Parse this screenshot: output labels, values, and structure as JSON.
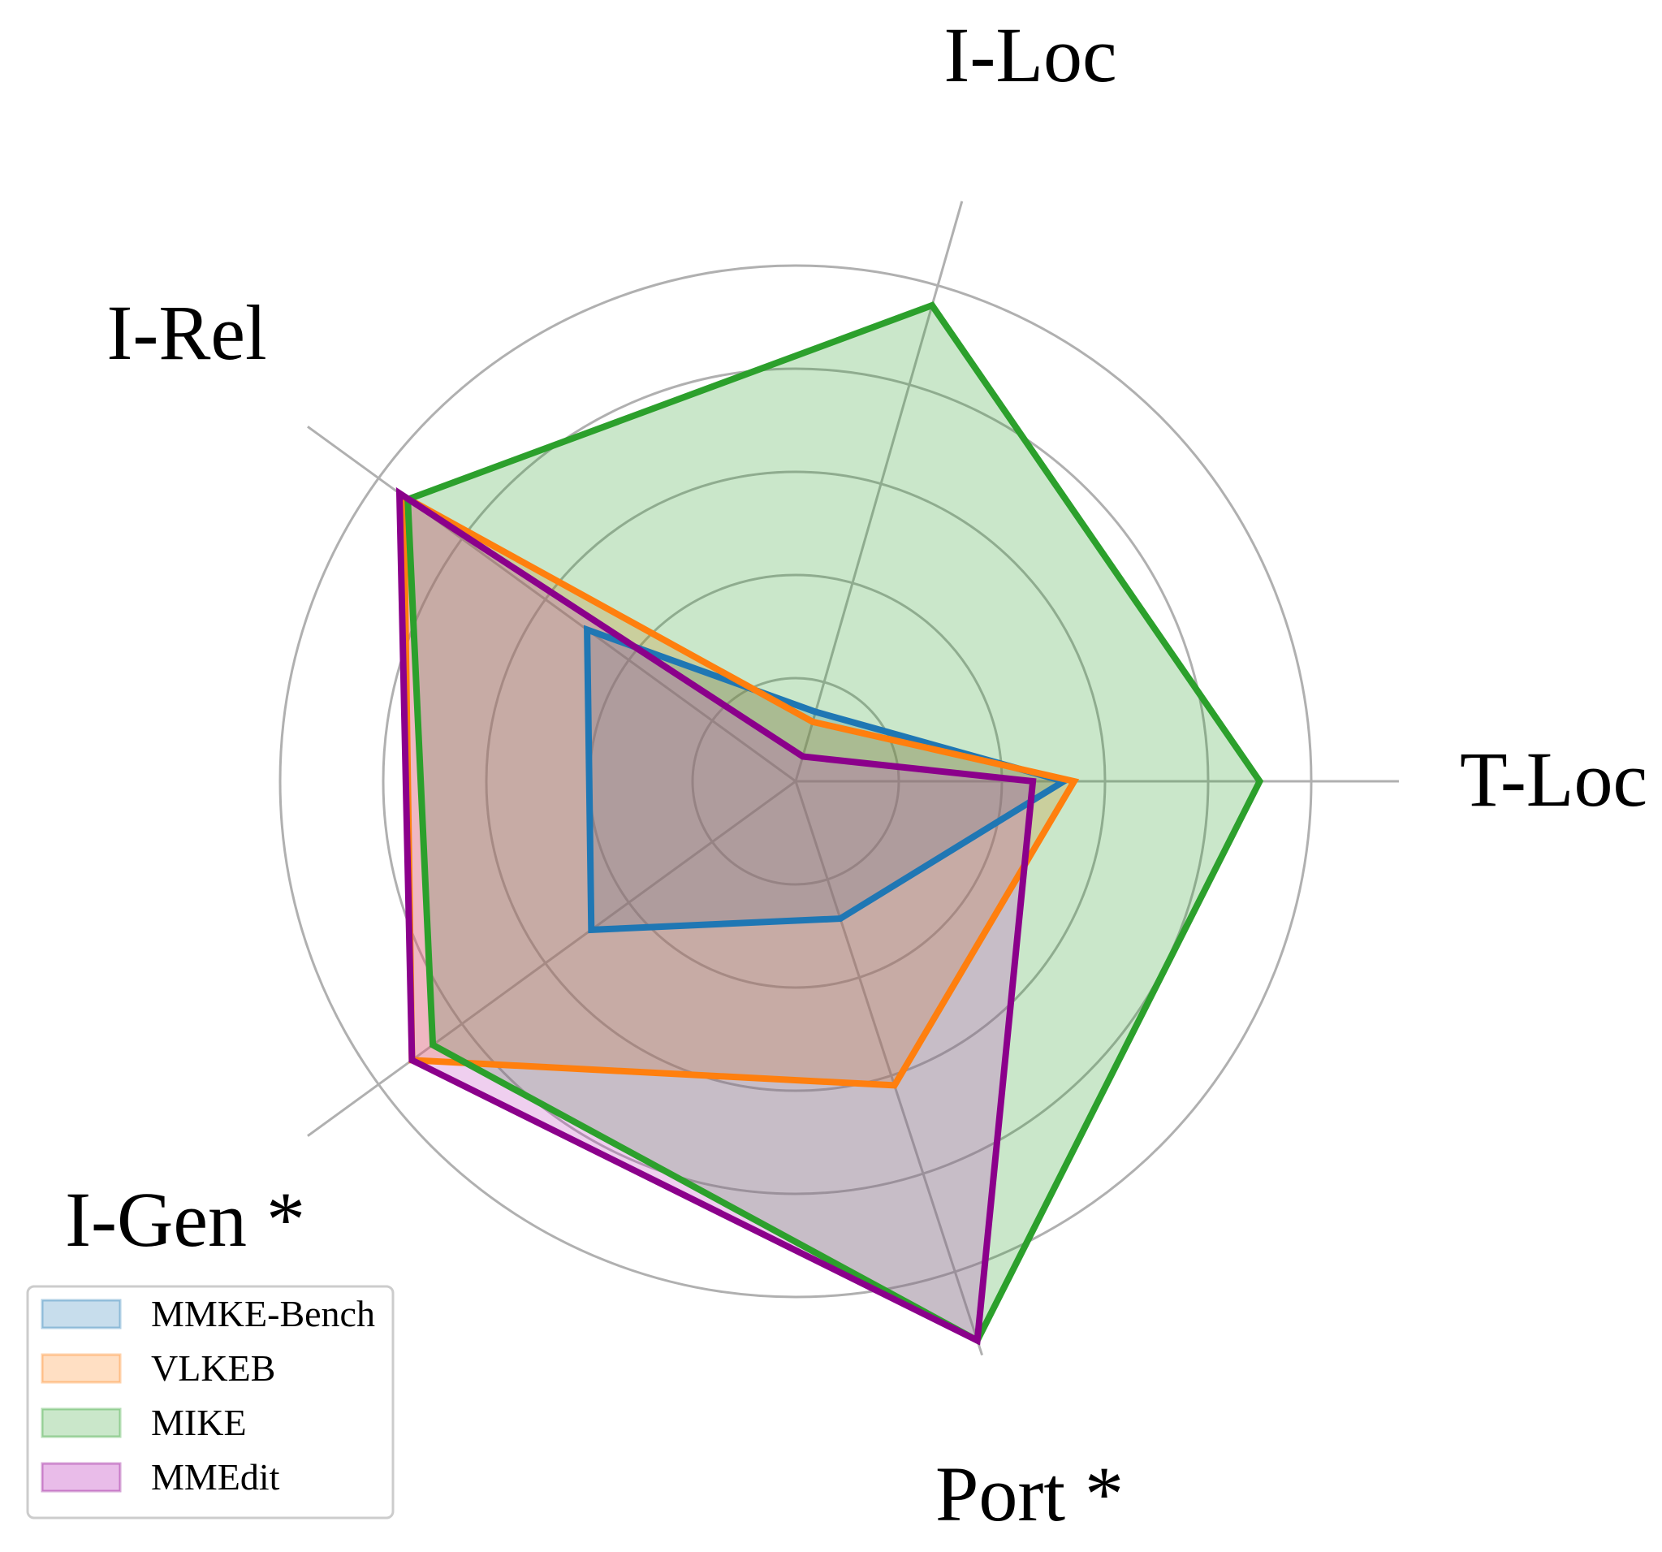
{
  "chart_data": {
    "type": "radar",
    "title": "",
    "axes": [
      "T-Loc",
      "I-Loc",
      "I-Rel",
      "I-Gen *",
      "Port *"
    ],
    "rmax": 1.0,
    "grid_levels": [
      0.2,
      0.4,
      0.6,
      0.8,
      1.0
    ],
    "grid": true,
    "legend_position": "bottom-left",
    "series": [
      {
        "name": "MMKE-Bench",
        "color": "#1f77b4",
        "values": [
          0.52,
          0.14,
          0.5,
          0.49,
          0.28
        ]
      },
      {
        "name": "VLKEB",
        "color": "#ff7f0e",
        "values": [
          0.54,
          0.12,
          0.94,
          0.92,
          0.62
        ]
      },
      {
        "name": "MIKE",
        "color": "#2ca02c",
        "values": [
          0.9,
          0.96,
          0.93,
          0.87,
          1.14
        ]
      },
      {
        "name": "MMEdit",
        "color": "#8b008b",
        "values": [
          0.46,
          0.05,
          0.95,
          0.92,
          1.14
        ]
      }
    ]
  }
}
